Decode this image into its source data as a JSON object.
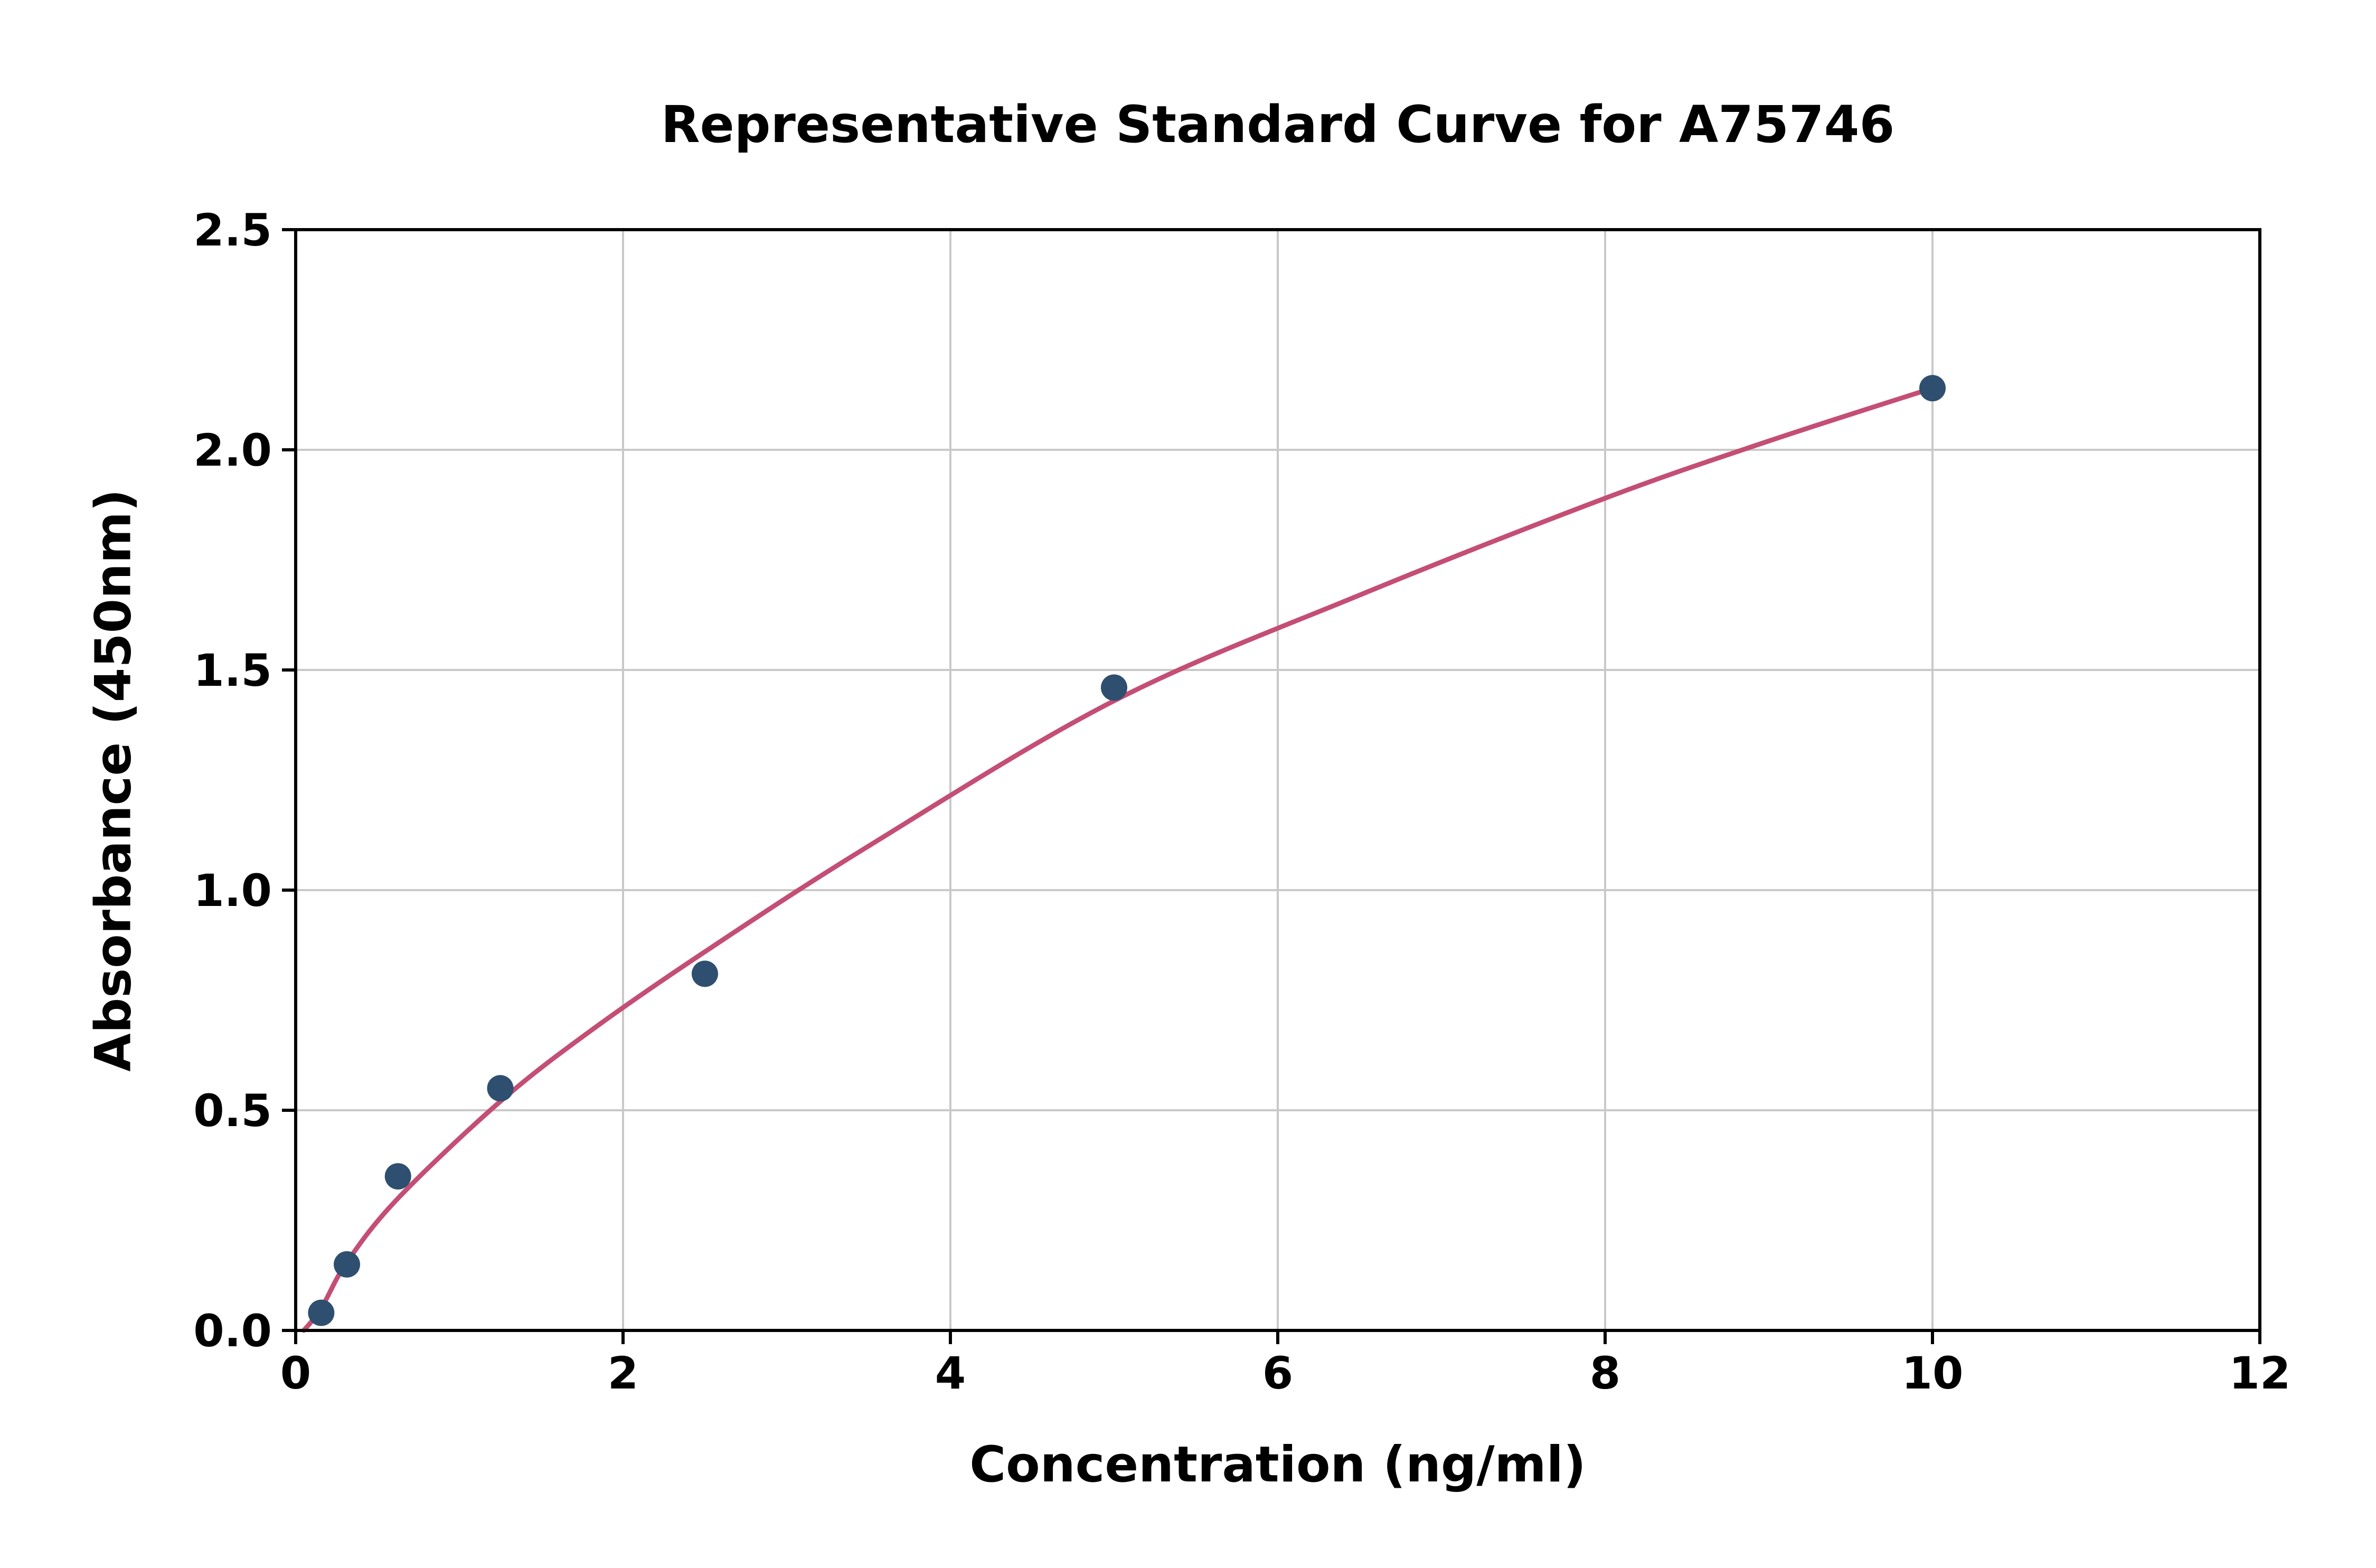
{
  "chart_data": {
    "type": "scatter",
    "title": "Representative Standard Curve for A75746",
    "xlabel": "Concentration (ng/ml)",
    "ylabel": "Absorbance (450nm)",
    "xlim": [
      0,
      12
    ],
    "ylim": [
      0,
      2.5
    ],
    "x_ticks": [
      0,
      2,
      4,
      6,
      8,
      10,
      12
    ],
    "x_tick_labels": [
      "0",
      "2",
      "4",
      "6",
      "8",
      "10",
      "12"
    ],
    "y_ticks": [
      0,
      0.5,
      1.0,
      1.5,
      2.0,
      2.5
    ],
    "y_tick_labels": [
      "0.0",
      "0.5",
      "1.0",
      "1.5",
      "2.0",
      "2.5"
    ],
    "grid": true,
    "legend": "none",
    "points": [
      [
        0.156,
        0.04
      ],
      [
        0.313,
        0.15
      ],
      [
        0.625,
        0.35
      ],
      [
        1.25,
        0.55
      ],
      [
        2.5,
        0.81
      ],
      [
        5.0,
        1.46
      ],
      [
        10.0,
        2.14
      ]
    ],
    "curve_points": [
      [
        0.05,
        0.0
      ],
      [
        0.156,
        0.05
      ],
      [
        0.313,
        0.155
      ],
      [
        0.625,
        0.3
      ],
      [
        1.25,
        0.52
      ],
      [
        1.8,
        0.68
      ],
      [
        2.5,
        0.86
      ],
      [
        3.5,
        1.1
      ],
      [
        5.0,
        1.43
      ],
      [
        6.5,
        1.67
      ],
      [
        8.0,
        1.89
      ],
      [
        9.0,
        2.02
      ],
      [
        10.0,
        2.14
      ]
    ],
    "colors": {
      "point_color": "#2e4f6f",
      "curve_color": "#c44e74",
      "grid_color": "#c9c9c9",
      "axis_color": "#000000",
      "background": "#ffffff"
    }
  }
}
